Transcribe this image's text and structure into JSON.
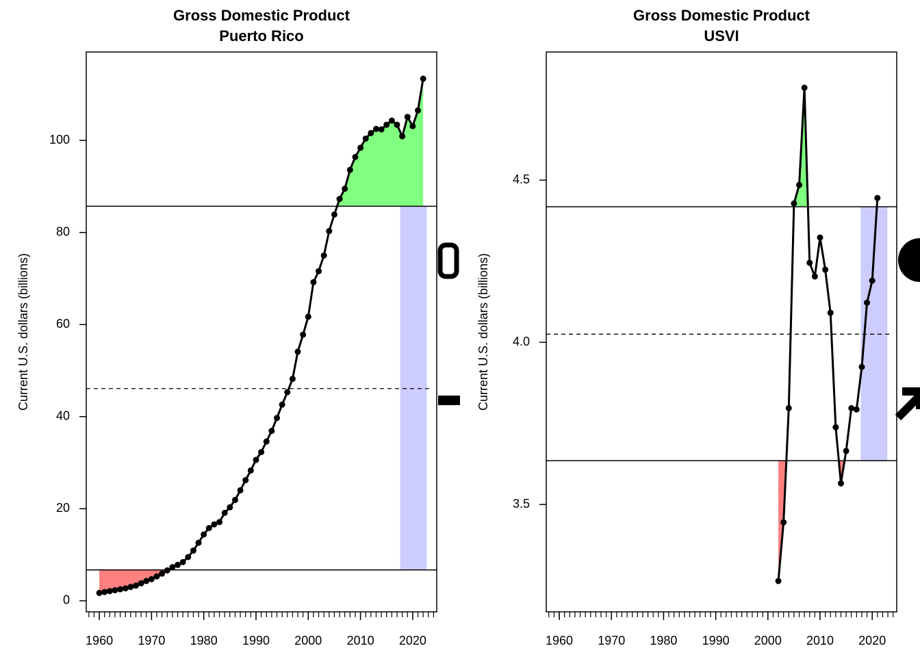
{
  "chart_data": [
    {
      "type": "line",
      "title": "Gross Domestic Product",
      "subtitle": "Puerto Rico",
      "y_label": "Current U.S. dollars (billions)",
      "x": [
        1960,
        1961,
        1962,
        1963,
        1964,
        1965,
        1966,
        1967,
        1968,
        1969,
        1970,
        1971,
        1972,
        1973,
        1974,
        1975,
        1976,
        1977,
        1978,
        1979,
        1980,
        1981,
        1982,
        1983,
        1984,
        1985,
        1986,
        1987,
        1988,
        1989,
        1990,
        1991,
        1992,
        1993,
        1994,
        1995,
        1996,
        1997,
        1998,
        1999,
        2000,
        2001,
        2002,
        2003,
        2004,
        2005,
        2006,
        2007,
        2008,
        2009,
        2010,
        2011,
        2012,
        2013,
        2014,
        2015,
        2016,
        2017,
        2018,
        2019,
        2020,
        2021,
        2022
      ],
      "values": [
        1.7,
        1.9,
        2.1,
        2.3,
        2.5,
        2.7,
        3.0,
        3.3,
        3.8,
        4.3,
        4.7,
        5.3,
        5.9,
        6.6,
        7.3,
        7.8,
        8.4,
        9.5,
        10.9,
        12.6,
        14.4,
        15.8,
        16.6,
        17.1,
        19.1,
        20.3,
        21.9,
        24.0,
        26.2,
        28.3,
        30.6,
        32.3,
        34.6,
        36.9,
        39.7,
        42.6,
        45.3,
        48.2,
        54.1,
        57.8,
        61.7,
        69.2,
        71.6,
        75.0,
        80.3,
        83.9,
        87.3,
        89.5,
        93.6,
        96.4,
        98.4,
        100.4,
        101.6,
        102.5,
        102.4,
        103.4,
        104.3,
        103.4,
        100.9,
        105.1,
        103.1,
        106.5,
        113.4
      ],
      "color": "#000000",
      "upper_line": 85.7,
      "lower_line": 6.7,
      "mean_line": 46.1,
      "upper_fill": "#80ff80",
      "lower_fill": "#ff8080",
      "band_x": [
        2017.6,
        2022.7
      ],
      "band_color": "#ccccff",
      "xlim": [
        1957.5,
        2024.6
      ],
      "xticks": [
        1960,
        1970,
        1980,
        1990,
        2000,
        2010,
        2020
      ],
      "xminor_step": 1,
      "ylim": [
        -2.4,
        119.2
      ],
      "yticks": [
        0,
        20,
        40,
        60,
        80,
        100
      ]
    },
    {
      "type": "line",
      "title": "Gross Domestic Product",
      "subtitle": "USVI",
      "y_label": "Current U.S. dollars (billions)",
      "x": [
        2002,
        2003,
        2004,
        2005,
        2006,
        2007,
        2008,
        2009,
        2010,
        2011,
        2012,
        2013,
        2014,
        2015,
        2016,
        2017,
        2018,
        2019,
        2020,
        2021
      ],
      "values": [
        3.264,
        3.445,
        3.797,
        4.428,
        4.485,
        4.785,
        4.245,
        4.203,
        4.323,
        4.224,
        4.091,
        3.738,
        3.565,
        3.665,
        3.797,
        3.793,
        3.924,
        4.122,
        4.19,
        4.445
      ],
      "color": "#000000",
      "upper_line": 4.418,
      "lower_line": 3.635,
      "mean_line": 4.025,
      "upper_fill": "#80ff80",
      "lower_fill": "#ff8080",
      "band_x": [
        2017.8,
        2022.9
      ],
      "band_color": "#ccccff",
      "xlim": [
        1957.5,
        2024.7
      ],
      "xticks": [
        1960,
        1970,
        1980,
        1990,
        2000,
        2010,
        2020
      ],
      "xminor_step": 1,
      "ylim": [
        3.169,
        4.895
      ],
      "yticks": [
        3.5,
        4.0,
        4.5
      ]
    }
  ]
}
